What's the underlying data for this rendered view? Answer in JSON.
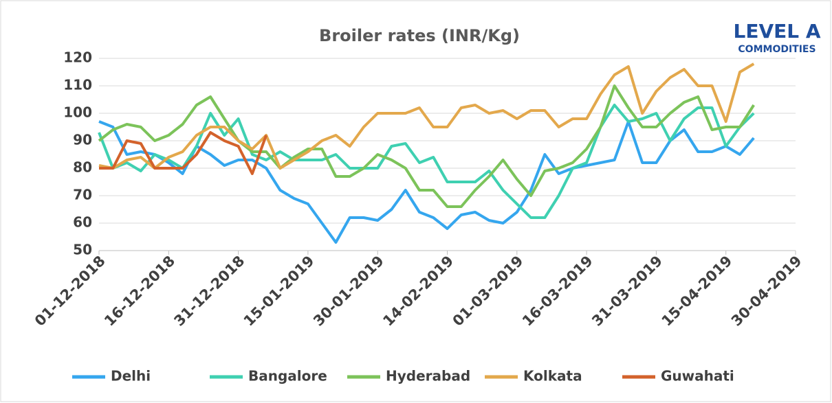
{
  "logo": {
    "text": "LEVEL A",
    "sub": "COMMODITIES"
  },
  "chart_data": {
    "type": "line",
    "title": "Broiler rates (INR/Kg)",
    "x": [
      "01-12-2018",
      "04-12-2018",
      "07-12-2018",
      "10-12-2018",
      "13-12-2018",
      "16-12-2018",
      "19-12-2018",
      "22-12-2018",
      "25-12-2018",
      "28-12-2018",
      "31-12-2018",
      "03-01-2019",
      "06-01-2019",
      "09-01-2019",
      "12-01-2019",
      "15-01-2019",
      "18-01-2019",
      "21-01-2019",
      "24-01-2019",
      "27-01-2019",
      "30-01-2019",
      "02-02-2019",
      "05-02-2019",
      "08-02-2019",
      "11-02-2019",
      "14-02-2019",
      "17-02-2019",
      "20-02-2019",
      "23-02-2019",
      "26-02-2019",
      "01-03-2019",
      "04-03-2019",
      "07-03-2019",
      "10-03-2019",
      "13-03-2019",
      "16-03-2019",
      "19-03-2019",
      "22-03-2019",
      "25-03-2019",
      "28-03-2019",
      "31-03-2019",
      "03-04-2019",
      "06-04-2019",
      "09-04-2019",
      "12-04-2019",
      "15-04-2019",
      "18-04-2019",
      "21-04-2019"
    ],
    "series": [
      {
        "name": "Delhi",
        "color": "#35a6ee",
        "values": [
          97,
          95,
          85,
          86,
          85,
          82,
          78,
          88,
          85,
          81,
          83,
          83,
          80,
          72,
          69,
          67,
          60,
          53,
          62,
          62,
          61,
          65,
          72,
          64,
          62,
          58,
          63,
          64,
          61,
          60,
          64,
          72,
          85,
          78,
          80,
          81,
          82,
          83,
          97,
          82,
          82,
          90,
          94,
          86,
          86,
          88,
          85,
          91
        ]
      },
      {
        "name": "Bangalore",
        "color": "#3fd0b1",
        "values": [
          93,
          80,
          82,
          79,
          85,
          83,
          80,
          88,
          100,
          92,
          98,
          85,
          83,
          86,
          83,
          83,
          83,
          85,
          80,
          80,
          80,
          88,
          89,
          82,
          84,
          75,
          75,
          75,
          79,
          72,
          67,
          62,
          62,
          70,
          80,
          82,
          95,
          103,
          97,
          98,
          100,
          90,
          98,
          102,
          102,
          88,
          95,
          100
        ]
      },
      {
        "name": "Hyderabad",
        "color": "#7cc35a",
        "values": [
          90,
          94,
          96,
          95,
          90,
          92,
          96,
          103,
          106,
          98,
          90,
          86,
          86,
          80,
          84,
          87,
          87,
          77,
          77,
          80,
          85,
          83,
          80,
          72,
          72,
          66,
          66,
          72,
          77,
          83,
          76,
          70,
          79,
          80,
          82,
          87,
          95,
          110,
          102,
          95,
          95,
          100,
          104,
          106,
          94,
          95,
          95,
          103
        ]
      },
      {
        "name": "Kolkata",
        "color": "#e3a84c",
        "values": [
          81,
          80,
          83,
          84,
          80,
          84,
          86,
          92,
          95,
          95,
          90,
          87,
          92,
          80,
          83,
          86,
          90,
          92,
          88,
          95,
          100,
          100,
          100,
          102,
          95,
          95,
          102,
          103,
          100,
          101,
          98,
          101,
          101,
          95,
          98,
          98,
          107,
          114,
          117,
          100,
          108,
          113,
          116,
          110,
          110,
          97,
          115,
          118
        ]
      },
      {
        "name": "Guwahati",
        "color": "#d3622b",
        "values": [
          80,
          80,
          90,
          89,
          80,
          80,
          80,
          85,
          93,
          90,
          88,
          78,
          92,
          null,
          null,
          null,
          null,
          null,
          null,
          null,
          null,
          null,
          null,
          null,
          null,
          null,
          null,
          null,
          null,
          null,
          null,
          null,
          null,
          null,
          null,
          null,
          null,
          null,
          null,
          null,
          null,
          null,
          null,
          null,
          null,
          null,
          null,
          null
        ]
      }
    ],
    "xlim": [
      "01-12-2018",
      "30-04-2019"
    ],
    "xticks": [
      "01-12-2018",
      "16-12-2018",
      "31-12-2018",
      "15-01-2019",
      "30-01-2019",
      "14-02-2019",
      "01-03-2019",
      "16-03-2019",
      "31-03-2019",
      "15-04-2019",
      "30-04-2019"
    ],
    "ylim": [
      50,
      120
    ],
    "yticks": [
      50,
      60,
      70,
      80,
      90,
      100,
      110,
      120
    ],
    "grid": true,
    "legend": "bottom"
  }
}
